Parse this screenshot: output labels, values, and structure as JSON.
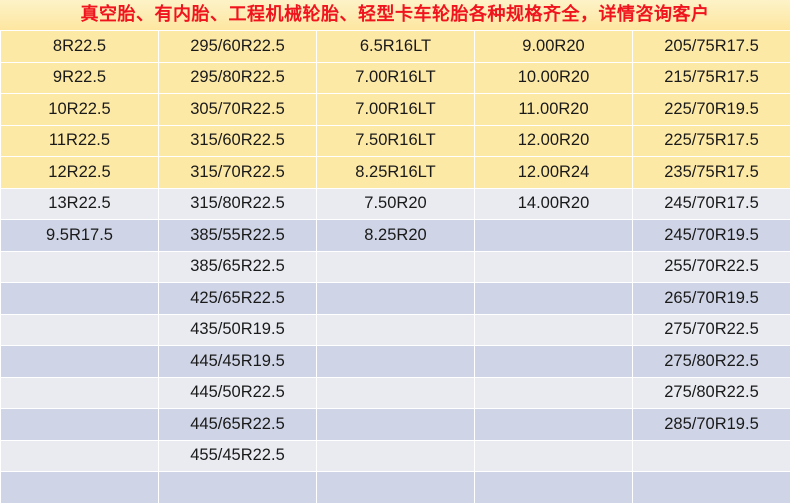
{
  "header": {
    "title": "真空胎、有内胎、工程机械轮胎、轻型卡车轮胎各种规格齐全，详情咨询客户"
  },
  "colors": {
    "title": "#f0141e",
    "highlight_rows": "#fde9a6",
    "light_rows": "#e9ebf1",
    "blue_rows": "#cfd5e6"
  },
  "rows": [
    [
      "8R22.5",
      "295/60R22.5",
      "6.5R16LT",
      "9.00R20",
      "205/75R17.5"
    ],
    [
      "9R22.5",
      "295/80R22.5",
      "7.00R16LT",
      "10.00R20",
      "215/75R17.5"
    ],
    [
      "10R22.5",
      "305/70R22.5",
      "7.00R16LT",
      "11.00R20",
      "225/70R19.5"
    ],
    [
      "11R22.5",
      "315/60R22.5",
      "7.50R16LT",
      "12.00R20",
      "225/75R17.5"
    ],
    [
      "12R22.5",
      "315/70R22.5",
      "8.25R16LT",
      "12.00R24",
      "235/75R17.5"
    ],
    [
      "13R22.5",
      "315/80R22.5",
      "7.50R20",
      "14.00R20",
      "245/70R17.5"
    ],
    [
      "9.5R17.5",
      "385/55R22.5",
      "8.25R20",
      "",
      "245/70R19.5"
    ],
    [
      "",
      "385/65R22.5",
      "",
      "",
      "255/70R22.5"
    ],
    [
      "",
      "425/65R22.5",
      "",
      "",
      "265/70R19.5"
    ],
    [
      "",
      "435/50R19.5",
      "",
      "",
      "275/70R22.5"
    ],
    [
      "",
      "445/45R19.5",
      "",
      "",
      "275/80R22.5"
    ],
    [
      "",
      "445/50R22.5",
      "",
      "",
      "275/80R22.5"
    ],
    [
      "",
      "445/65R22.5",
      "",
      "",
      "285/70R19.5"
    ],
    [
      "",
      "455/45R22.5",
      "",
      "",
      ""
    ],
    [
      "",
      "",
      "",
      "",
      ""
    ]
  ]
}
